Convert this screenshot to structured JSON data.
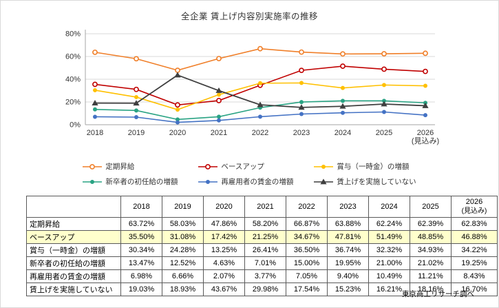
{
  "title": "全企業 賃上げ内容別実施率の推移",
  "source": "東京商工リサーチ調べ",
  "chart_data": {
    "type": "line",
    "title": "全企業 賃上げ内容別実施率の推移",
    "categories": [
      "2018",
      "2019",
      "2020",
      "2021",
      "2022",
      "2023",
      "2024",
      "2025",
      "2026\n(見込み)"
    ],
    "ylim": [
      0,
      80
    ],
    "yticks": [
      0,
      20,
      40,
      60,
      80
    ],
    "ytick_suffix": "%",
    "grid": true,
    "legend_position": "bottom",
    "series": [
      {
        "name": "定期昇給",
        "color": "#f07f29",
        "marker": "open-circle",
        "values": [
          63.72,
          58.03,
          47.86,
          58.2,
          66.87,
          63.88,
          62.24,
          62.39,
          62.83
        ]
      },
      {
        "name": "ベースアップ",
        "color": "#c00000",
        "marker": "open-circle",
        "values": [
          35.5,
          31.08,
          17.42,
          21.25,
          34.67,
          47.81,
          51.49,
          48.85,
          46.88
        ]
      },
      {
        "name": "賞与（一時金）の増額",
        "color": "#ffc000",
        "marker": "filled-circle",
        "values": [
          30.34,
          24.28,
          13.25,
          26.41,
          36.5,
          36.74,
          32.32,
          34.93,
          34.22
        ]
      },
      {
        "name": "新卒者の初任給の増額",
        "color": "#29a383",
        "marker": "filled-circle",
        "values": [
          13.47,
          12.52,
          4.63,
          7.01,
          15.0,
          19.95,
          21.0,
          21.02,
          19.25
        ]
      },
      {
        "name": "再雇用者の賃金の増額",
        "color": "#4472c4",
        "marker": "filled-circle",
        "values": [
          6.98,
          6.66,
          2.07,
          3.77,
          7.05,
          9.4,
          10.49,
          11.21,
          8.43
        ]
      },
      {
        "name": "賃上げを実施していない",
        "color": "#3f3f3f",
        "marker": "triangle",
        "values": [
          19.03,
          18.93,
          43.67,
          29.98,
          17.54,
          15.23,
          16.21,
          18.16,
          16.7
        ]
      }
    ]
  },
  "table": {
    "header": [
      "",
      "2018",
      "2019",
      "2020",
      "2021",
      "2022",
      "2023",
      "2024",
      "2025",
      "2026\n(見込み)"
    ],
    "rows": [
      {
        "label": "定期昇給",
        "highlight": false,
        "values": [
          "63.72%",
          "58.03%",
          "47.86%",
          "58.20%",
          "66.87%",
          "63.88%",
          "62.24%",
          "62.39%",
          "62.83%"
        ]
      },
      {
        "label": "ベースアップ",
        "highlight": true,
        "values": [
          "35.50%",
          "31.08%",
          "17.42%",
          "21.25%",
          "34.67%",
          "47.81%",
          "51.49%",
          "48.85%",
          "46.88%"
        ]
      },
      {
        "label": "賞与（一時金）の増額",
        "highlight": false,
        "values": [
          "30.34%",
          "24.28%",
          "13.25%",
          "26.41%",
          "36.50%",
          "36.74%",
          "32.32%",
          "34.93%",
          "34.22%"
        ]
      },
      {
        "label": "新卒者の初任給の増額",
        "highlight": false,
        "values": [
          "13.47%",
          "12.52%",
          "4.63%",
          "7.01%",
          "15.00%",
          "19.95%",
          "21.00%",
          "21.02%",
          "19.25%"
        ]
      },
      {
        "label": "再雇用者の賃金の増額",
        "highlight": false,
        "values": [
          "6.98%",
          "6.66%",
          "2.07%",
          "3.77%",
          "7.05%",
          "9.40%",
          "10.49%",
          "11.21%",
          "8.43%"
        ]
      },
      {
        "label": "賃上げを実施していない",
        "highlight": false,
        "values": [
          "19.03%",
          "18.93%",
          "43.67%",
          "29.98%",
          "17.54%",
          "15.23%",
          "16.21%",
          "18.16%",
          "16.70%"
        ]
      }
    ]
  }
}
